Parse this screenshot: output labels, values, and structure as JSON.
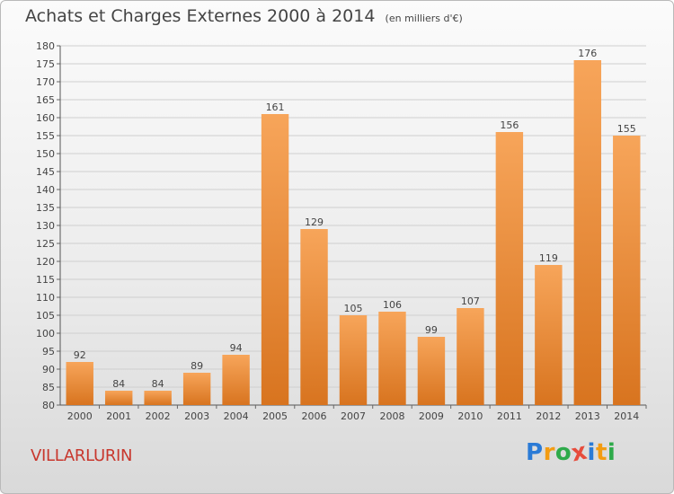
{
  "header": {
    "title": "Achats et Charges Externes 2000 à 2014",
    "subtitle": "(en milliers d'€)"
  },
  "place_name": "VILLARLURIN",
  "logo": {
    "text": "Proxiti",
    "letters": [
      {
        "ch": "P",
        "color": "#2b7bd6"
      },
      {
        "ch": "r",
        "color": "#f39c12"
      },
      {
        "ch": "o",
        "color": "#2eaa4a"
      },
      {
        "ch": "x",
        "color": "#e74c3c"
      },
      {
        "ch": "i",
        "color": "#2b7bd6"
      },
      {
        "ch": "t",
        "color": "#f39c12"
      },
      {
        "ch": "i",
        "color": "#2eaa4a"
      }
    ]
  },
  "colors": {
    "bar_light": "#f7a55a",
    "bar_dark": "#d8741f",
    "grid": "#cfcfcf",
    "text": "#444444"
  },
  "chart_data": {
    "type": "bar",
    "title": "Achats et Charges Externes 2000 à 2014",
    "subtitle": "(en milliers d'€)",
    "categories": [
      "2000",
      "2001",
      "2002",
      "2003",
      "2004",
      "2005",
      "2006",
      "2007",
      "2008",
      "2009",
      "2010",
      "2011",
      "2012",
      "2013",
      "2014"
    ],
    "values": [
      92,
      84,
      84,
      89,
      94,
      161,
      129,
      105,
      106,
      99,
      107,
      156,
      119,
      176,
      155
    ],
    "ylim": [
      80,
      180
    ],
    "ytick_step": 5,
    "grid": true,
    "xlabel": "",
    "ylabel": ""
  }
}
